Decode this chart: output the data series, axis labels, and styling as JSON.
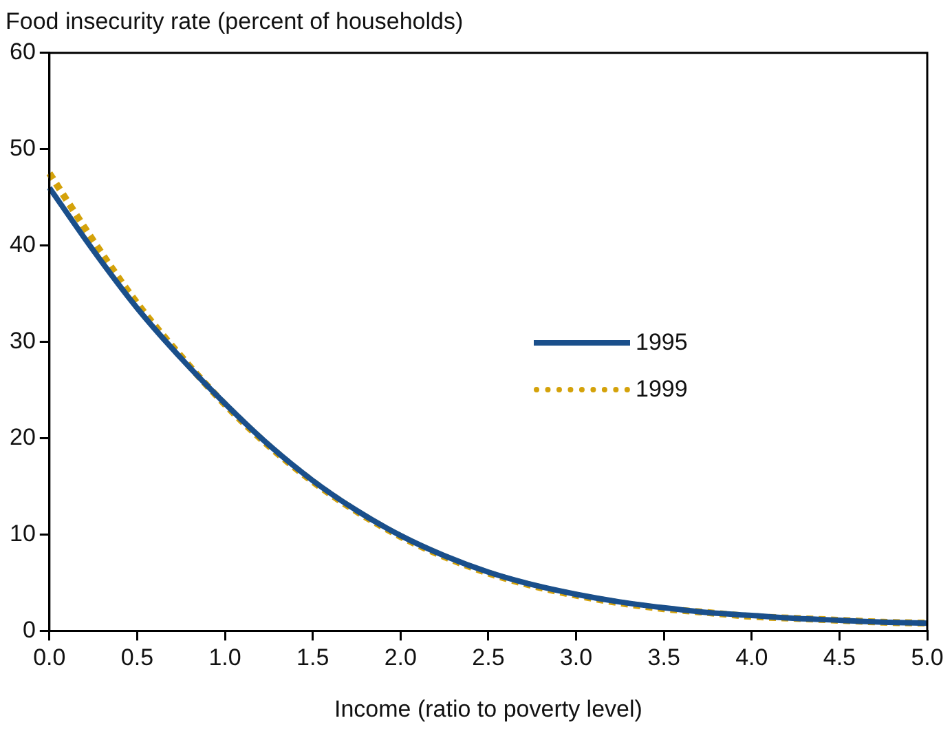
{
  "chart_data": {
    "type": "line",
    "ylabel": "Food insecurity rate (percent of households)",
    "xlabel": "Income (ratio to poverty level)",
    "x": [
      0,
      0.25,
      0.5,
      0.75,
      1,
      1.25,
      1.5,
      1.75,
      2,
      2.25,
      2.5,
      2.75,
      3,
      3.25,
      3.5,
      3.75,
      4,
      4.25,
      4.5,
      4.75,
      5
    ],
    "series": [
      {
        "name": "1995",
        "color": "#1a4f8b",
        "line_style": "solid",
        "values": [
          46,
          39.5,
          33.5,
          28.3,
          23.6,
          19.3,
          15.6,
          12.5,
          9.9,
          7.8,
          6.1,
          4.8,
          3.8,
          3.0,
          2.4,
          1.9,
          1.6,
          1.3,
          1.1,
          0.9,
          0.8
        ]
      },
      {
        "name": "1999",
        "color": "#d4a20a",
        "line_style": "dotted",
        "values": [
          47.5,
          40.5,
          34,
          28.5,
          23.5,
          19.2,
          15.5,
          12.4,
          9.8,
          7.7,
          6.0,
          4.7,
          3.7,
          2.9,
          2.3,
          1.9,
          1.5,
          1.3,
          1.1,
          0.9,
          0.8
        ]
      }
    ],
    "xlim": [
      0,
      5
    ],
    "xticks": [
      {
        "value": 0,
        "label": "0.0"
      },
      {
        "value": 0.5,
        "label": "0.5"
      },
      {
        "value": 1,
        "label": "1.0"
      },
      {
        "value": 1.5,
        "label": "1.5"
      },
      {
        "value": 2,
        "label": "2.0"
      },
      {
        "value": 2.5,
        "label": "2.5"
      },
      {
        "value": 3,
        "label": "3.0"
      },
      {
        "value": 3.5,
        "label": "3.5"
      },
      {
        "value": 4,
        "label": "4.0"
      },
      {
        "value": 4.5,
        "label": "4.5"
      },
      {
        "value": 5,
        "label": "5.0"
      }
    ],
    "ylim": [
      0,
      60
    ],
    "yticks": [
      0,
      10,
      20,
      30,
      40,
      50,
      60
    ],
    "legend": "right",
    "grid": false,
    "marker": "none"
  }
}
